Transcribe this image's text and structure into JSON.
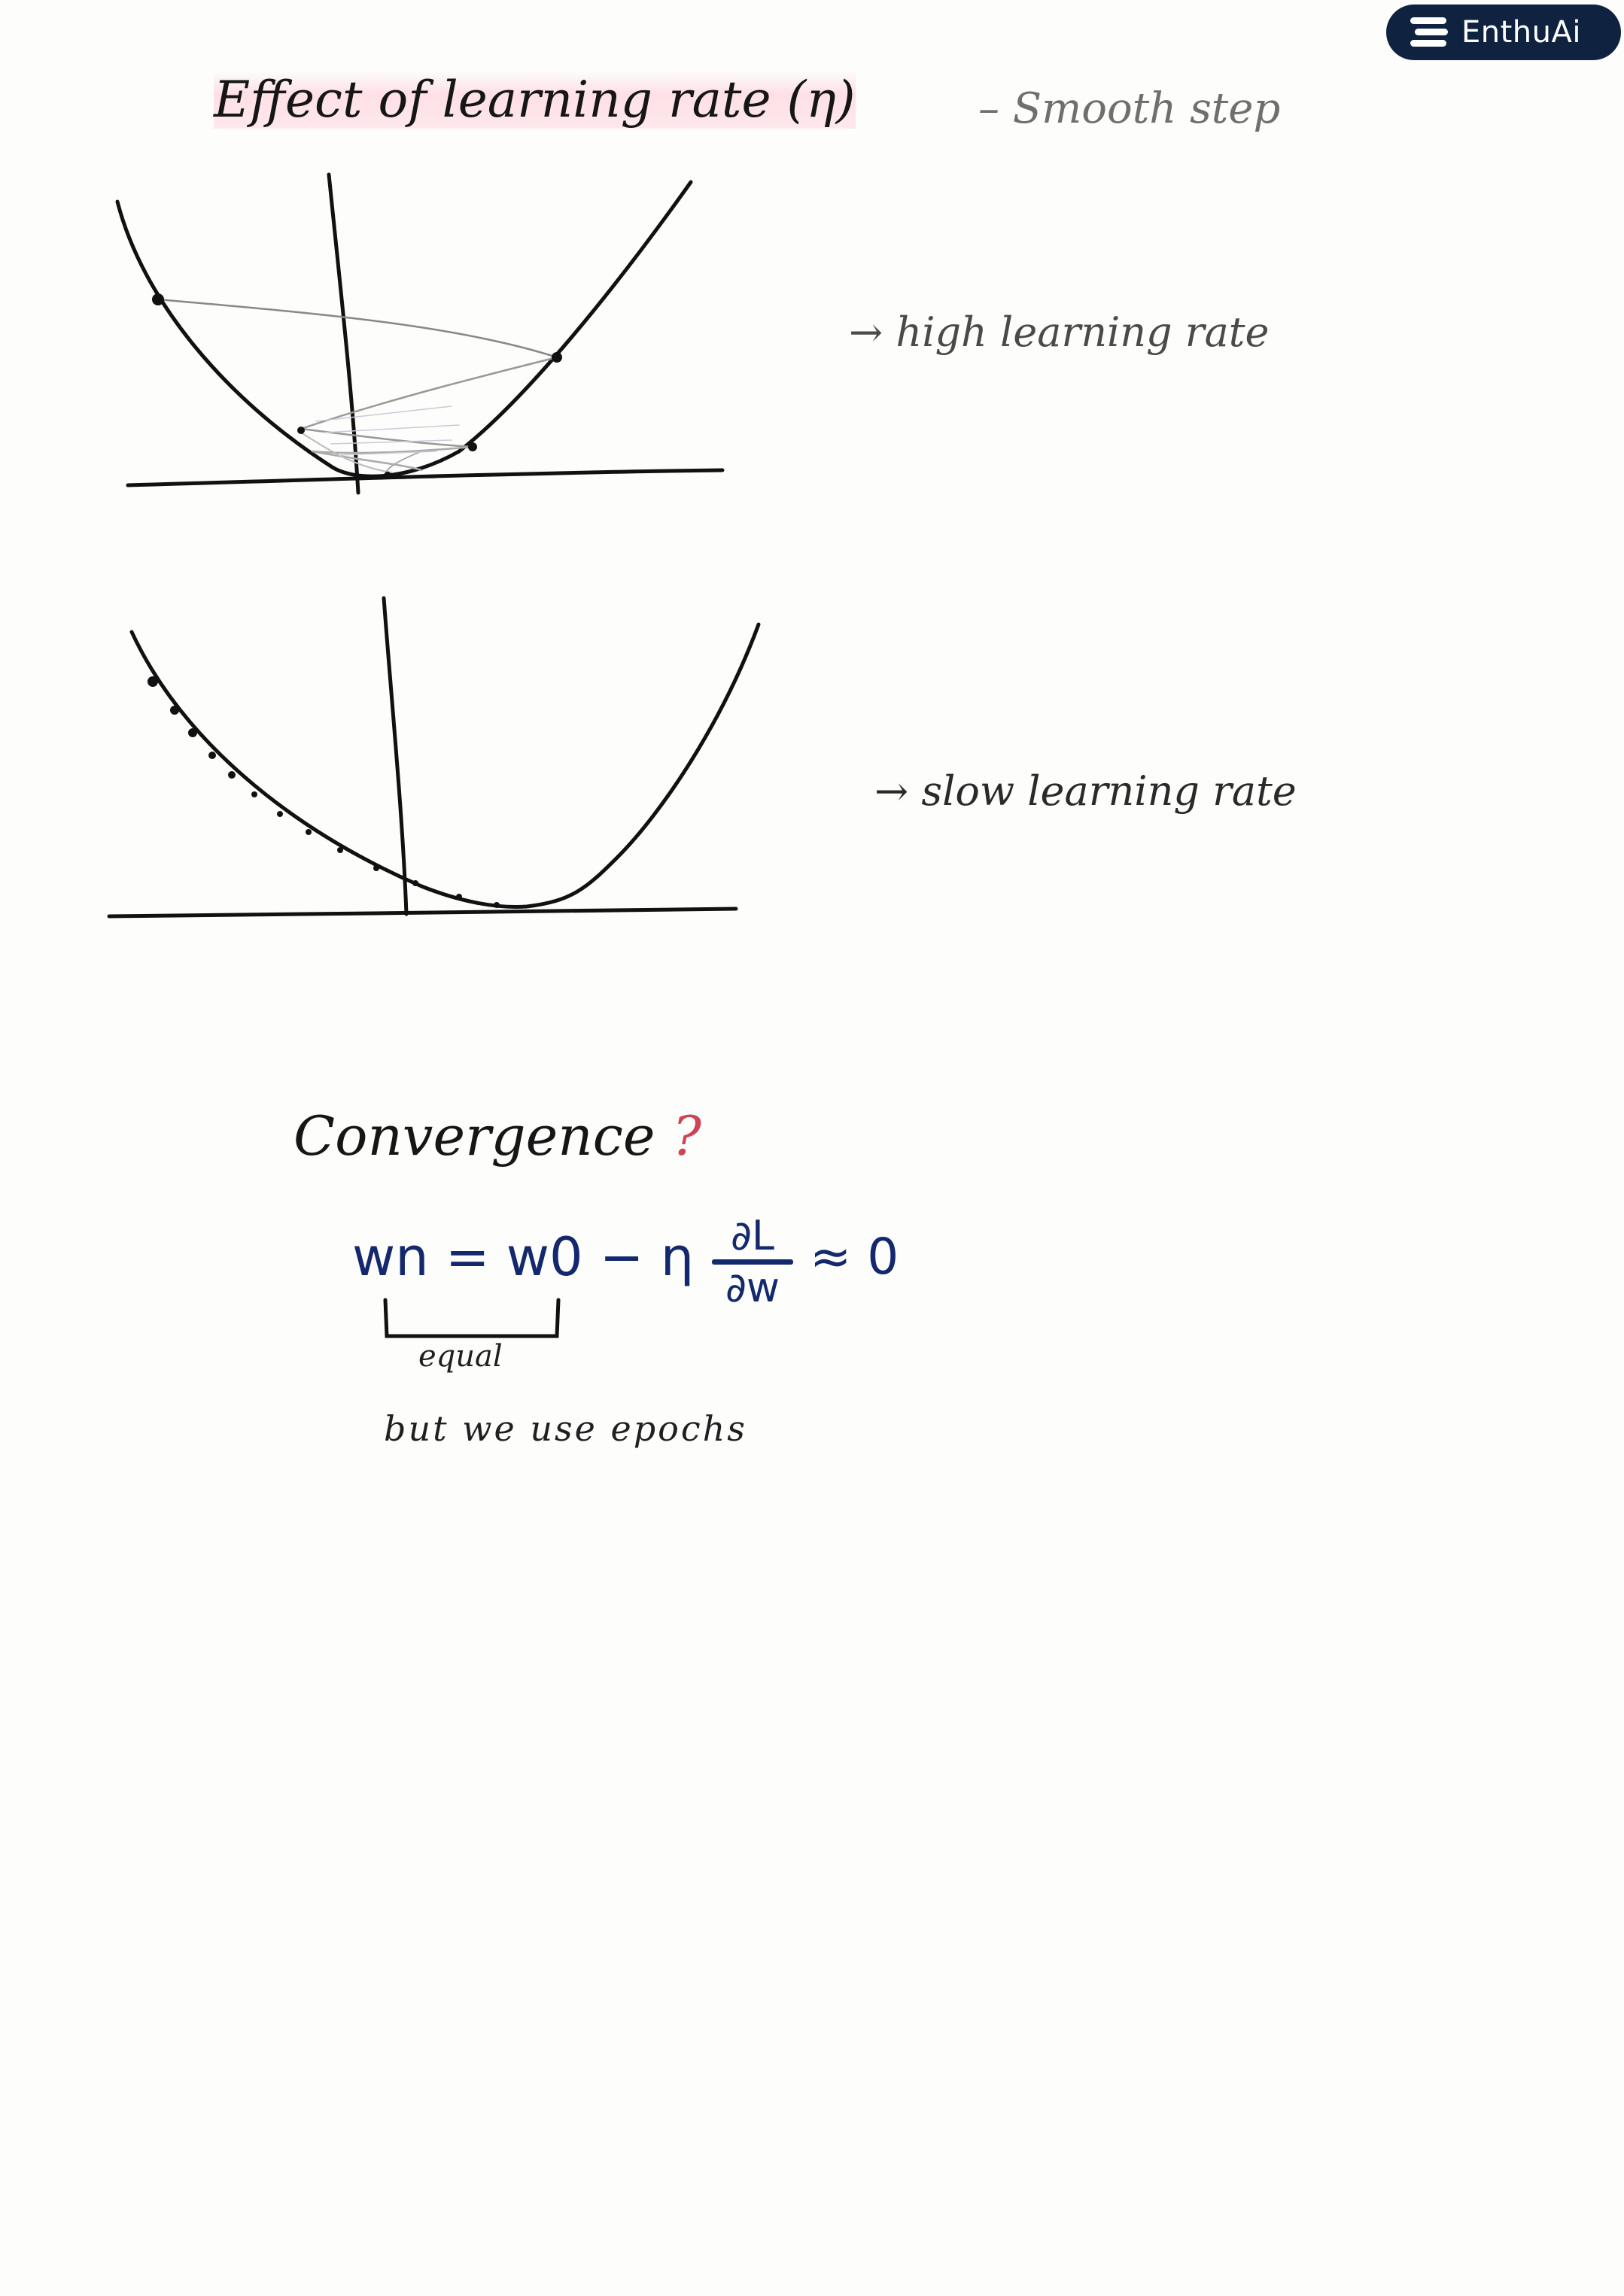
{
  "brand": {
    "name": "EnthuAi",
    "color": "#0f2240"
  },
  "notes": {
    "title_parts": [
      "Effect of learning rate (",
      "η",
      ")"
    ],
    "subtitle": "– Smooth step",
    "graph1_label": "→ high learning rate",
    "graph2_label": "→ slow learning rate",
    "convergence_title": "Convergence",
    "convergence_mark": "?",
    "formula_lhs": "wn = w0 − η",
    "derivative_numerator": "∂L",
    "derivative_denominator": "∂w",
    "approx": "≈ 0",
    "bracket_label": "equal",
    "footnote": "but we use epochs"
  },
  "colors": {
    "ink": "#161616",
    "formula_ink": "#14286e",
    "highlight": "#ffaabe"
  }
}
